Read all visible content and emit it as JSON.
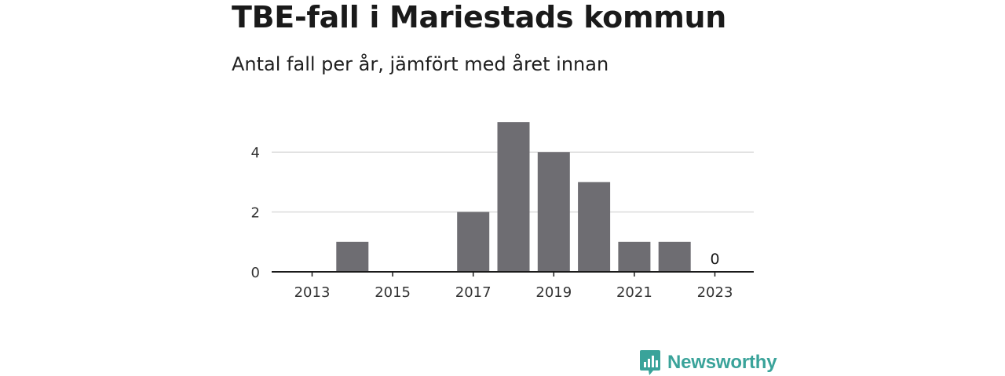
{
  "title": "TBE-fall i Mariestads kommun",
  "subtitle": "Antal fall per år, jämfört med året innan",
  "brand": {
    "name": "Newsworthy",
    "color": "#3aa39a",
    "icon": "newsworthy-logo-icon"
  },
  "chart_data": {
    "type": "bar",
    "categories": [
      2013,
      2014,
      2015,
      2016,
      2017,
      2018,
      2019,
      2020,
      2021,
      2022,
      2023
    ],
    "values": [
      0,
      1,
      0,
      0,
      2,
      5,
      4,
      3,
      1,
      1,
      0
    ],
    "x_tick_labels": [
      "2013",
      "2015",
      "2017",
      "2019",
      "2021",
      "2023"
    ],
    "y_ticks": [
      0,
      2,
      4
    ],
    "y_tick_labels": [
      "0",
      "2",
      "4"
    ],
    "ylim": [
      0,
      5
    ],
    "data_labels": [
      {
        "category": 2023,
        "text": "0"
      }
    ],
    "bar_color": "#6e6d72",
    "grid": true,
    "grid_color": "#dcdcdc",
    "axis_color": "#1a1a1a",
    "xlabel": "",
    "ylabel": ""
  }
}
